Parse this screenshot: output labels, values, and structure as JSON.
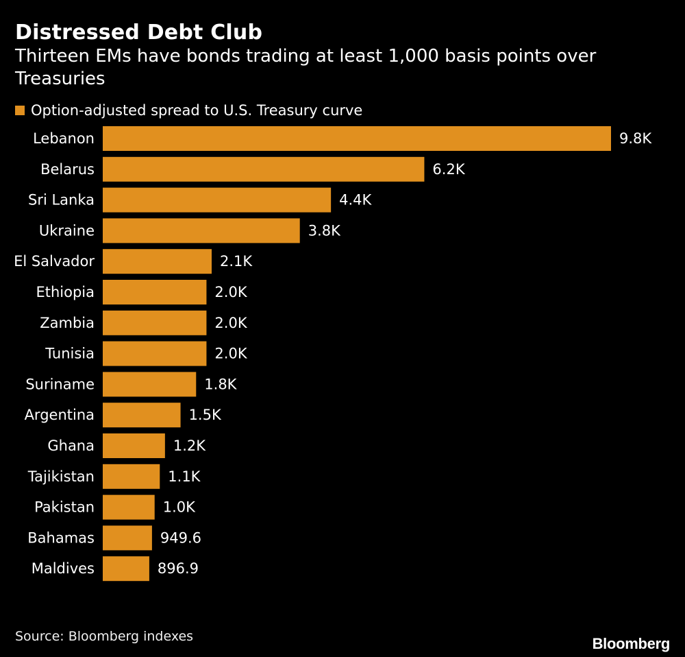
{
  "header": {
    "title": "Distressed Debt Club",
    "subtitle": "Thirteen EMs have bonds trading at least 1,000 basis points over Treasuries"
  },
  "legend": {
    "label": "Option-adjusted spread to U.S. Treasury curve"
  },
  "colors": {
    "bar": "#E1901F",
    "background": "#000000",
    "text": "#FFFFFF"
  },
  "chart_data": {
    "type": "bar",
    "orientation": "horizontal",
    "title": "Distressed Debt Club",
    "subtitle": "Thirteen EMs have bonds trading at least 1,000 basis points over Treasuries",
    "categories": [
      "Lebanon",
      "Belarus",
      "Sri Lanka",
      "Ukraine",
      "El Salvador",
      "Ethiopia",
      "Zambia",
      "Tunisia",
      "Suriname",
      "Argentina",
      "Ghana",
      "Tajikistan",
      "Pakistan",
      "Bahamas",
      "Maldives"
    ],
    "series": [
      {
        "name": "Option-adjusted spread to U.S. Treasury curve",
        "values": [
          9800,
          6200,
          4400,
          3800,
          2100,
          2000,
          2000,
          2000,
          1800,
          1500,
          1200,
          1100,
          1000,
          949.6,
          896.9
        ],
        "labels": [
          "9.8K",
          "6.2K",
          "4.4K",
          "3.8K",
          "2.1K",
          "2.0K",
          "2.0K",
          "2.0K",
          "1.8K",
          "1.5K",
          "1.2K",
          "1.1K",
          "1.0K",
          "949.6",
          "896.9"
        ]
      }
    ],
    "xlim": [
      0,
      9800
    ],
    "grid": false,
    "legend_position": "top-left"
  },
  "footer": {
    "source": "Source: Bloomberg indexes",
    "brand": "Bloomberg"
  }
}
